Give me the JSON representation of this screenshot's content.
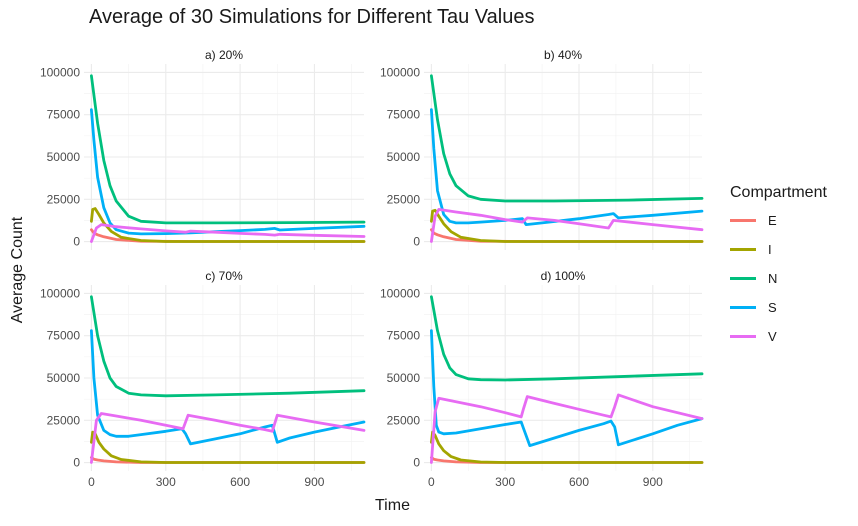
{
  "chart_data": {
    "type": "line",
    "title": "Average of 30 Simulations for Different Tau Values",
    "xlabel": "Time",
    "ylabel": "Average Count",
    "xlim": [
      -30,
      1100
    ],
    "ylim": [
      -5000,
      105000
    ],
    "x_ticks": [
      0,
      300,
      600,
      900
    ],
    "y_ticks": [
      0,
      25000,
      50000,
      75000,
      100000
    ],
    "y_tick_labels": [
      "0",
      "25000",
      "50000",
      "75000",
      "100000"
    ],
    "grid": true,
    "legend": {
      "title": "Compartment",
      "position": "right",
      "entries": [
        {
          "name": "E",
          "color": "#F8766D"
        },
        {
          "name": "I",
          "color": "#A3A500"
        },
        {
          "name": "N",
          "color": "#00BF7D"
        },
        {
          "name": "S",
          "color": "#00B0F6"
        },
        {
          "name": "V",
          "color": "#E76BF3"
        }
      ]
    },
    "panels": [
      {
        "label": "a) 20%",
        "series": [
          {
            "name": "E",
            "x": [
              0,
              10,
              25,
              50,
              100,
              200,
              400,
              1100
            ],
            "y": [
              7000,
              5000,
              4000,
              2800,
              1200,
              200,
              0,
              0
            ]
          },
          {
            "name": "I",
            "x": [
              0,
              5,
              15,
              30,
              50,
              80,
              120,
              200,
              300,
              1100
            ],
            "y": [
              12000,
              19000,
              19500,
              16000,
              11000,
              6000,
              2500,
              600,
              0,
              0
            ]
          },
          {
            "name": "N",
            "x": [
              0,
              25,
              50,
              75,
              100,
              150,
              200,
              300,
              500,
              800,
              1100
            ],
            "y": [
              98000,
              70000,
              48000,
              33000,
              24000,
              15000,
              12000,
              11000,
              11000,
              11200,
              11500
            ]
          },
          {
            "name": "S",
            "x": [
              0,
              10,
              25,
              50,
              75,
              100,
              150,
              200,
              300,
              400,
              500,
              600,
              700,
              740,
              760,
              900,
              1100
            ],
            "y": [
              78000,
              60000,
              38000,
              20000,
              11000,
              7000,
              5000,
              4500,
              4700,
              5200,
              5800,
              6500,
              7200,
              7800,
              6800,
              7800,
              9000
            ]
          },
          {
            "name": "V",
            "x": [
              0,
              20,
              40,
              100,
              200,
              300,
              380,
              400,
              500,
              600,
              700,
              740,
              760,
              900,
              1100
            ],
            "y": [
              0,
              8000,
              10000,
              8800,
              7500,
              6300,
              5500,
              6200,
              5500,
              4800,
              4200,
              3800,
              4300,
              3700,
              3000
            ]
          }
        ]
      },
      {
        "label": "b) 40%",
        "series": [
          {
            "name": "E",
            "x": [
              0,
              10,
              25,
              50,
              100,
              200,
              400,
              1100
            ],
            "y": [
              7000,
              5000,
              4000,
              2800,
              1200,
              200,
              0,
              0
            ]
          },
          {
            "name": "I",
            "x": [
              0,
              5,
              15,
              30,
              50,
              80,
              120,
              200,
              300,
              1100
            ],
            "y": [
              12000,
              18000,
              18500,
              15000,
              10500,
              5800,
              2500,
              600,
              0,
              0
            ]
          },
          {
            "name": "N",
            "x": [
              0,
              25,
              50,
              75,
              100,
              150,
              200,
              300,
              500,
              800,
              1100
            ],
            "y": [
              98000,
              72000,
              52000,
              40000,
              33000,
              27000,
              25000,
              24000,
              24000,
              24500,
              25500
            ]
          },
          {
            "name": "S",
            "x": [
              0,
              10,
              25,
              50,
              75,
              100,
              150,
              200,
              300,
              370,
              385,
              450,
              600,
              720,
              740,
              760,
              900,
              1100
            ],
            "y": [
              78000,
              55000,
              30000,
              16000,
              12000,
              11000,
              11000,
              11500,
              12500,
              13500,
              10000,
              11000,
              13500,
              16000,
              16500,
              14000,
              15500,
              18000
            ]
          },
          {
            "name": "V",
            "x": [
              0,
              15,
              30,
              100,
              200,
              300,
              370,
              390,
              500,
              600,
              720,
              740,
              900,
              1100
            ],
            "y": [
              0,
              15000,
              19000,
              17500,
              15500,
              13000,
              11500,
              14000,
              12500,
              10500,
              8000,
              12500,
              10000,
              7000
            ]
          }
        ]
      },
      {
        "label": "c) 70%",
        "series": [
          {
            "name": "E",
            "x": [
              0,
              10,
              25,
              50,
              100,
              200,
              400,
              1100
            ],
            "y": [
              3000,
              2000,
              1500,
              1000,
              400,
              50,
              0,
              0
            ]
          },
          {
            "name": "I",
            "x": [
              0,
              5,
              15,
              30,
              50,
              80,
              120,
              200,
              300,
              1100
            ],
            "y": [
              12000,
              18000,
              17000,
              12000,
              8000,
              4000,
              1800,
              400,
              0,
              0
            ]
          },
          {
            "name": "N",
            "x": [
              0,
              25,
              50,
              75,
              100,
              150,
              200,
              300,
              500,
              800,
              1100
            ],
            "y": [
              98000,
              75000,
              60000,
              50000,
              45000,
              41000,
              40000,
              39500,
              40000,
              41000,
              42500
            ]
          },
          {
            "name": "S",
            "x": [
              0,
              10,
              25,
              50,
              75,
              100,
              150,
              200,
              300,
              365,
              380,
              400,
              500,
              600,
              700,
              730,
              750,
              800,
              900,
              1000,
              1100
            ],
            "y": [
              78000,
              50000,
              28000,
              19000,
              16500,
              15500,
              15500,
              16500,
              18500,
              20000,
              17000,
              11000,
              14000,
              17000,
              21000,
              22000,
              12000,
              14500,
              18000,
              21000,
              24000
            ]
          },
          {
            "name": "V",
            "x": [
              0,
              20,
              40,
              100,
              200,
              300,
              370,
              390,
              500,
              600,
              700,
              730,
              750,
              900,
              1100
            ],
            "y": [
              0,
              25000,
              29000,
              27500,
              25000,
              22000,
              20000,
              28000,
              25000,
              22000,
              19500,
              18500,
              28000,
              24000,
              19000
            ]
          }
        ]
      },
      {
        "label": "d) 100%",
        "series": [
          {
            "name": "E",
            "x": [
              0,
              10,
              25,
              50,
              100,
              200,
              400,
              1100
            ],
            "y": [
              3000,
              2000,
              1500,
              1000,
              400,
              50,
              0,
              0
            ]
          },
          {
            "name": "I",
            "x": [
              0,
              5,
              15,
              30,
              50,
              80,
              120,
              200,
              300,
              1100
            ],
            "y": [
              12000,
              18000,
              16000,
              11000,
              7000,
              3500,
              1500,
              300,
              0,
              0
            ]
          },
          {
            "name": "N",
            "x": [
              0,
              25,
              50,
              75,
              100,
              150,
              200,
              300,
              500,
              800,
              1100
            ],
            "y": [
              98000,
              78000,
              64000,
              56000,
              52000,
              49500,
              49000,
              48800,
              49500,
              51000,
              52500
            ]
          },
          {
            "name": "S",
            "x": [
              0,
              10,
              20,
              30,
              50,
              100,
              200,
              300,
              365,
              375,
              400,
              500,
              600,
              700,
              730,
              745,
              760,
              900,
              1000,
              1100
            ],
            "y": [
              78000,
              45000,
              22000,
              18000,
              17000,
              17500,
              20000,
              22500,
              24000,
              20000,
              10000,
              14500,
              19000,
              23000,
              24500,
              21000,
              10500,
              17000,
              22000,
              26000
            ]
          },
          {
            "name": "V",
            "x": [
              0,
              15,
              30,
              100,
              200,
              300,
              365,
              375,
              390,
              500,
              600,
              700,
              730,
              745,
              760,
              900,
              1100
            ],
            "y": [
              0,
              30000,
              38000,
              36000,
              33000,
              29500,
              27000,
              32000,
              39000,
              35000,
              31500,
              28000,
              27000,
              33000,
              40000,
              33000,
              26000
            ]
          }
        ]
      }
    ]
  }
}
